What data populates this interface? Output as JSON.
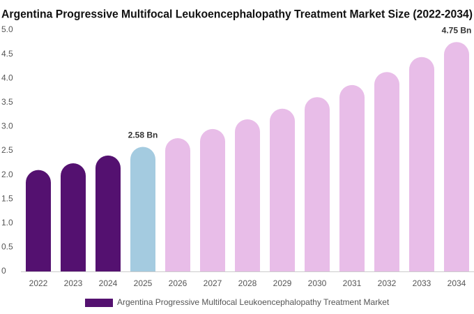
{
  "chart_data": {
    "type": "bar",
    "title": "Argentina Progressive Multifocal Leukoencephalopathy Treatment Market Size (2022-2034)",
    "categories": [
      "2022",
      "2023",
      "2024",
      "2025",
      "2026",
      "2027",
      "2028",
      "2029",
      "2030",
      "2031",
      "2032",
      "2033",
      "2034"
    ],
    "series": [
      {
        "name": "Argentina Progressive Multifocal Leukoencephalopathy Treatment Market",
        "color": "#541170",
        "values": [
          2.1,
          2.24,
          2.4,
          2.58,
          2.76,
          2.95,
          3.15,
          3.37,
          3.61,
          3.86,
          4.13,
          4.44,
          4.75
        ],
        "value_labels": [
          null,
          null,
          null,
          "2.58 Bn",
          null,
          null,
          null,
          null,
          null,
          null,
          null,
          null,
          "4.75 Bn"
        ],
        "colors": [
          "#541170",
          "#541170",
          "#541170",
          "#a4cbe0",
          "#e8bde8",
          "#e8bde8",
          "#e8bde8",
          "#e8bde8",
          "#e8bde8",
          "#e8bde8",
          "#e8bde8",
          "#e8bde8",
          "#e8bde8"
        ]
      }
    ],
    "ylim": [
      0,
      5
    ],
    "yticks": [
      0,
      0.5,
      {
        "value": 1,
        "label": "1.0"
      },
      1.5,
      {
        "value": 2,
        "label": "2.0"
      },
      2.5,
      {
        "value": 3,
        "label": "3.0"
      },
      3.5,
      {
        "value": 4,
        "label": "4.0"
      },
      4.5,
      {
        "value": 5,
        "label": "5.0"
      }
    ],
    "grid": false,
    "legend": "bottom"
  }
}
